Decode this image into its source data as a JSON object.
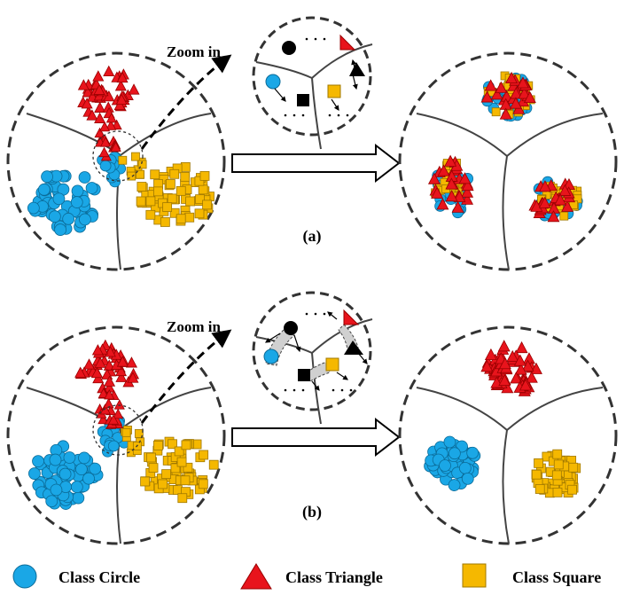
{
  "panel_a": {
    "zoom_label": "Zoom in",
    "caption": "(a)"
  },
  "panel_b": {
    "zoom_label": "Zoom in",
    "caption": "(b)"
  },
  "legend": {
    "circle": "Class Circle",
    "triangle": "Class Triangle",
    "square": "Class Square"
  },
  "colors": {
    "circle": "#1aa7e6",
    "triangle": "#e8141c",
    "square": "#f5b800",
    "boundary": "#444444",
    "dashed_border": "#333333"
  }
}
